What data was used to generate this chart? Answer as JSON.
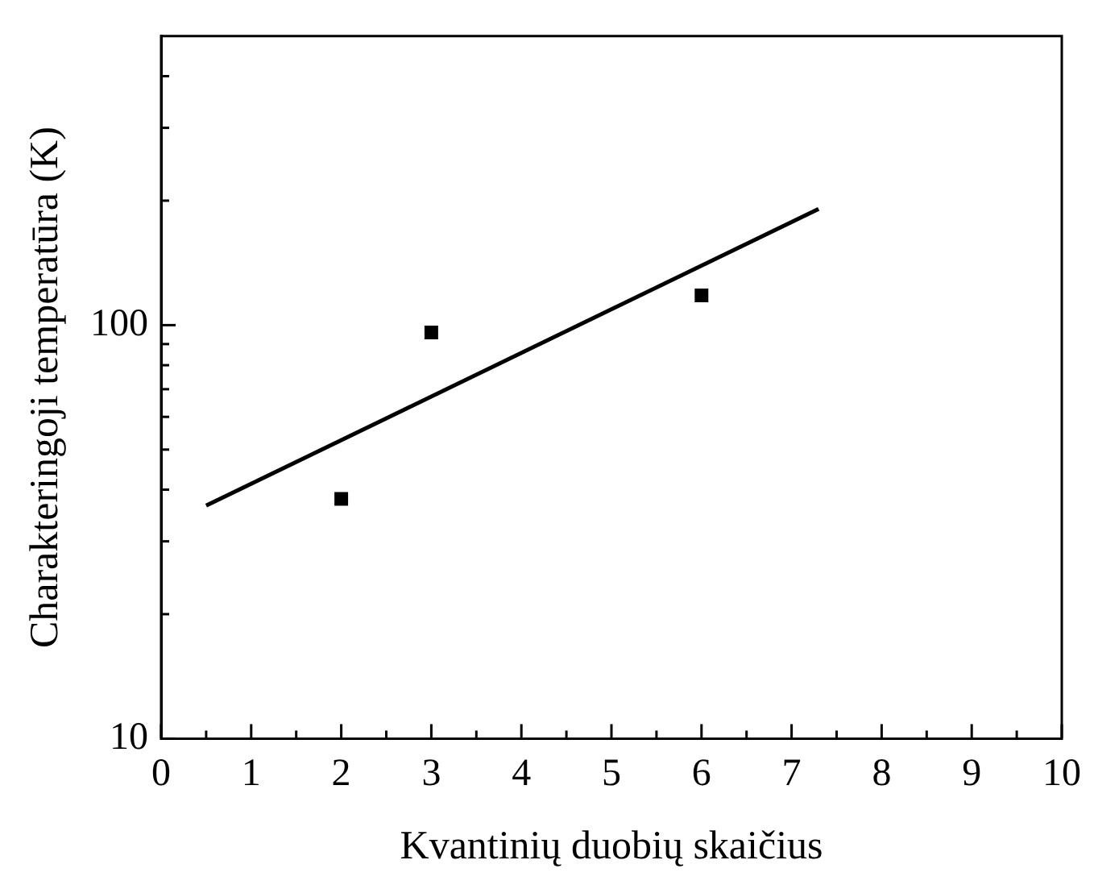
{
  "chart_data": {
    "type": "scatter",
    "xlabel": "Kvantinių duobių skaičius",
    "ylabel": "Charakteringoji temperatūra (K)",
    "log": "y",
    "grid": false,
    "legend": false,
    "marker": "square",
    "xlim": [
      0,
      10
    ],
    "ylim": [
      10,
      500
    ],
    "xticks": [
      0,
      {
        "value": 0.5,
        "label": null
      },
      1,
      {
        "value": 1.5,
        "label": null
      },
      2,
      {
        "value": 2.5,
        "label": null
      },
      3,
      {
        "value": 3.5,
        "label": null
      },
      4,
      {
        "value": 4.5,
        "label": null
      },
      5,
      {
        "value": 5.5,
        "label": null
      },
      6,
      {
        "value": 6.5,
        "label": null
      },
      7,
      {
        "value": 7.5,
        "label": null
      },
      8,
      {
        "value": 8.5,
        "label": null
      },
      9,
      {
        "value": 9.5,
        "label": null
      },
      10
    ],
    "yticks": [
      10,
      {
        "value": 20,
        "label": null
      },
      {
        "value": 30,
        "label": null
      },
      {
        "value": 40,
        "label": null
      },
      {
        "value": 50,
        "label": null
      },
      {
        "value": 60,
        "label": null
      },
      {
        "value": 70,
        "label": null
      },
      {
        "value": 80,
        "label": null
      },
      {
        "value": 90,
        "label": null
      },
      100,
      {
        "value": 200,
        "label": null
      },
      {
        "value": 300,
        "label": null
      },
      {
        "value": 400,
        "label": null
      }
    ],
    "series": [
      {
        "color": "#000000",
        "x": [
          2,
          3,
          6
        ],
        "values": [
          38,
          96,
          118
        ]
      },
      {
        "type": "line",
        "color": "#000000",
        "marker": "none",
        "x": [
          0.5,
          7.3
        ],
        "values": [
          36.6,
          191
        ]
      }
    ]
  }
}
